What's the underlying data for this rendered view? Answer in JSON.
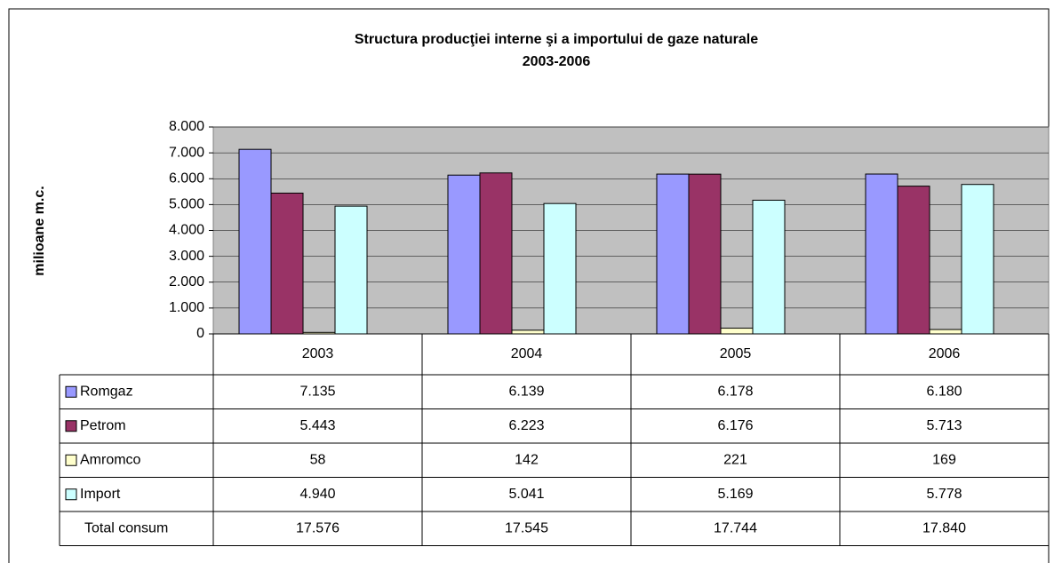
{
  "chart_data": {
    "type": "bar",
    "title": "Structura producţiei interne şi a importului de gaze naturale",
    "subtitle": "2003-2006",
    "y_label": "milioane m.c.",
    "categories": [
      "2003",
      "2004",
      "2005",
      "2006"
    ],
    "series": [
      {
        "name": "Romgaz",
        "color": "#9999ff",
        "values": [
          7135,
          6139,
          6178,
          6180
        ],
        "value_labels": [
          "7.135",
          "6.139",
          "6.178",
          "6.180"
        ]
      },
      {
        "name": "Petrom",
        "color": "#993366",
        "values": [
          5443,
          6223,
          6176,
          5713
        ],
        "value_labels": [
          "5.443",
          "6.223",
          "6.176",
          "5.713"
        ]
      },
      {
        "name": "Amromco",
        "color": "#ffffcc",
        "values": [
          58,
          142,
          221,
          169
        ],
        "value_labels": [
          "58",
          "142",
          "221",
          "169"
        ]
      },
      {
        "name": "Import",
        "color": "#ccffff",
        "values": [
          4940,
          5041,
          5169,
          5778
        ],
        "value_labels": [
          "4.940",
          "5.041",
          "5.169",
          "5.778"
        ]
      }
    ],
    "total": {
      "name": "Total consum",
      "values": [
        17576,
        17545,
        17744,
        17840
      ],
      "value_labels": [
        "17.576",
        "17.545",
        "17.744",
        "17.840"
      ]
    },
    "ylim": [
      0,
      8000
    ],
    "yticks": [
      0,
      {
        "value": 1000,
        "label": "1.000"
      },
      {
        "value": 2000,
        "label": "2.000"
      },
      {
        "value": 3000,
        "label": "3.000"
      },
      {
        "value": 4000,
        "label": "4.000"
      },
      {
        "value": 5000,
        "label": "5.000"
      },
      {
        "value": 6000,
        "label": "6.000"
      },
      {
        "value": 7000,
        "label": "7.000"
      },
      {
        "value": 8000,
        "label": "8.000"
      }
    ],
    "grid": true,
    "plot_background": "#c0c0c0"
  }
}
